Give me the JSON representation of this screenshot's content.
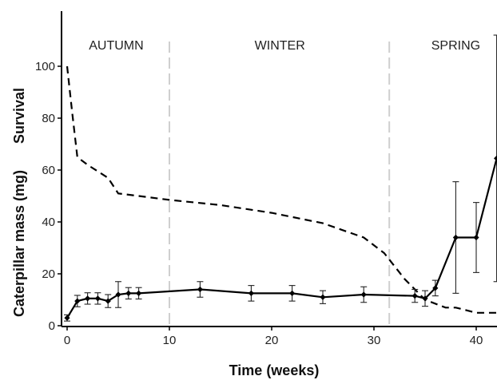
{
  "chart_data": {
    "type": "line",
    "xlabel": "Time (weeks)",
    "ylabel_top": "Survival",
    "ylabel_bottom": "Caterpillar mass (mg)",
    "xlim": [
      -0.5,
      43
    ],
    "ylim": [
      0,
      115
    ],
    "x_ticks": [
      0,
      10,
      20,
      30,
      40
    ],
    "y_ticks": [
      0,
      20,
      40,
      60,
      80,
      100
    ],
    "grid": false,
    "legend": "none",
    "season_dividers": [
      10,
      31.5
    ],
    "seasons": [
      {
        "label": "AUTUMN",
        "x": 4.8
      },
      {
        "label": "WINTER",
        "x": 20.8
      },
      {
        "label": "SPRING",
        "x": 38
      }
    ],
    "survival": {
      "style": "dashed",
      "x": [
        0,
        0.5,
        1,
        2,
        4,
        5,
        7,
        10,
        15,
        20,
        25,
        29,
        31,
        33,
        35,
        37,
        38,
        40,
        42
      ],
      "y": [
        100,
        82,
        65,
        62,
        57,
        51,
        50,
        48.5,
        46.5,
        43.5,
        39.5,
        34,
        28,
        18,
        10,
        7,
        7,
        5,
        5
      ]
    },
    "mass": {
      "style": "solid-with-markers",
      "points": [
        {
          "x": 0,
          "y": 3,
          "err": 1.2
        },
        {
          "x": 1,
          "y": 9.5,
          "err": 2.2
        },
        {
          "x": 2,
          "y": 10.5,
          "err": 2.2
        },
        {
          "x": 3,
          "y": 10.5,
          "err": 2.2
        },
        {
          "x": 4,
          "y": 9.5,
          "err": 2.5
        },
        {
          "x": 5,
          "y": 12,
          "err": 5
        },
        {
          "x": 6,
          "y": 12.5,
          "err": 2.2
        },
        {
          "x": 7,
          "y": 12.5,
          "err": 2.2
        },
        {
          "x": 13,
          "y": 14,
          "err": 3
        },
        {
          "x": 18,
          "y": 12.5,
          "err": 3
        },
        {
          "x": 22,
          "y": 12.5,
          "err": 3
        },
        {
          "x": 25,
          "y": 11,
          "err": 2.5
        },
        {
          "x": 29,
          "y": 12,
          "err": 3
        },
        {
          "x": 34,
          "y": 11.5,
          "err": 2.5
        },
        {
          "x": 35,
          "y": 10.5,
          "err": 3
        },
        {
          "x": 36,
          "y": 14.5,
          "err": 3
        },
        {
          "x": 38,
          "y": 34,
          "err": 21.5
        },
        {
          "x": 40,
          "y": 34,
          "err": 13.5
        },
        {
          "x": 42,
          "y": 64.5,
          "err": 47.5
        }
      ]
    }
  }
}
